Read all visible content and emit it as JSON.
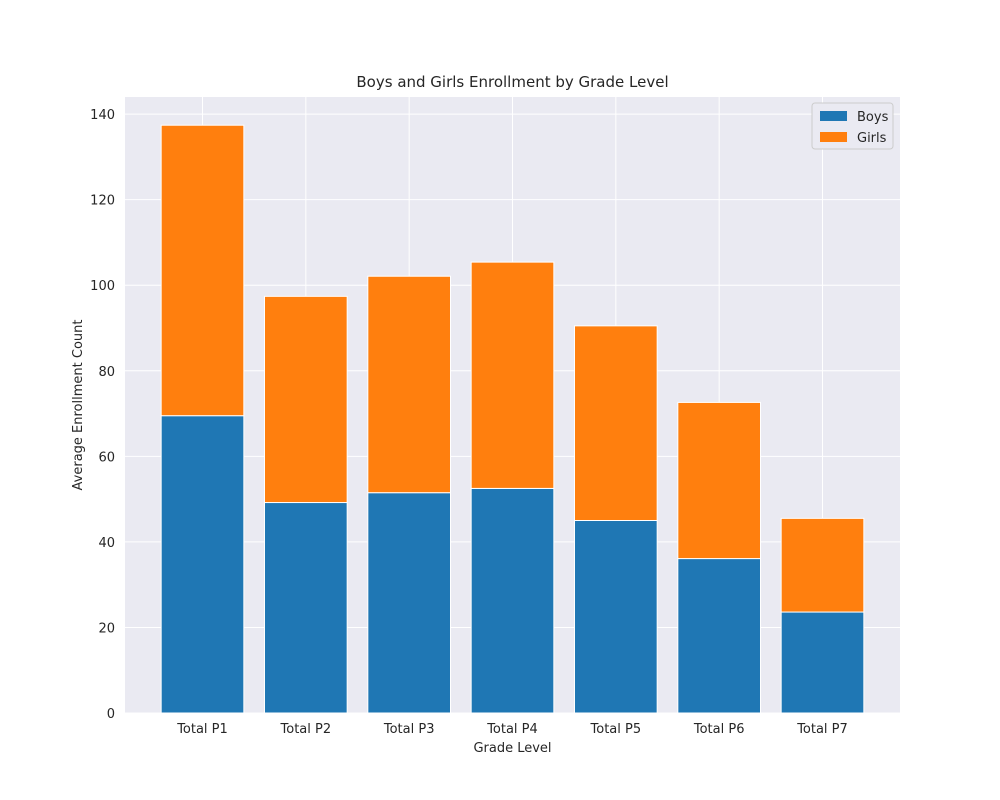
{
  "chart_data": {
    "type": "bar",
    "stacked": true,
    "title": "Boys and Girls Enrollment by Grade Level",
    "xlabel": "Grade Level",
    "ylabel": "Average Enrollment Count",
    "categories": [
      "Total P1",
      "Total P2",
      "Total P3",
      "Total P4",
      "Total P5",
      "Total P6",
      "Total P7"
    ],
    "series": [
      {
        "name": "Boys",
        "color": "#1f77b4",
        "values": [
          69.5,
          49.2,
          51.5,
          52.5,
          45.0,
          36.1,
          23.6
        ]
      },
      {
        "name": "Girls",
        "color": "#ff7f0e",
        "values": [
          67.9,
          48.2,
          50.6,
          52.9,
          45.5,
          36.5,
          21.9
        ]
      }
    ],
    "ylim": [
      0,
      144
    ],
    "yticks": [
      0,
      20,
      40,
      60,
      80,
      100,
      120,
      140
    ],
    "grid": true,
    "legend_position": "top-right",
    "background_color": "#eaeaf2"
  }
}
